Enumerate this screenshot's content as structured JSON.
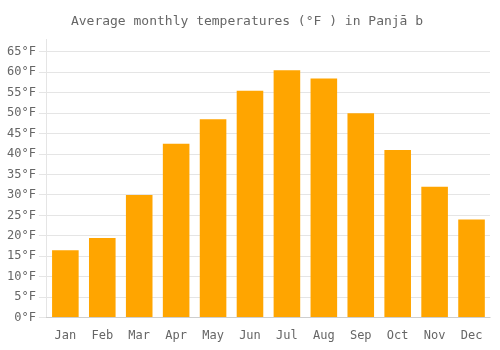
{
  "chart_data": {
    "type": "bar",
    "title": "Average monthly temperatures (°F ) in Panjā b",
    "categories": [
      "Jan",
      "Feb",
      "Mar",
      "Apr",
      "May",
      "Jun",
      "Jul",
      "Aug",
      "Sep",
      "Oct",
      "Nov",
      "Dec"
    ],
    "values": [
      16.5,
      19.5,
      30.0,
      42.5,
      48.5,
      55.5,
      60.5,
      58.5,
      50.0,
      41.0,
      32.0,
      24.0
    ],
    "color": "#FFA500",
    "ylim": [
      0,
      68
    ],
    "yticks": [
      {
        "value": 0,
        "label": "0°F"
      },
      {
        "value": 5,
        "label": "5°F"
      },
      {
        "value": 10,
        "label": "10°F"
      },
      {
        "value": 15,
        "label": "15°F"
      },
      {
        "value": 20,
        "label": "20°F"
      },
      {
        "value": 25,
        "label": "25°F"
      },
      {
        "value": 30,
        "label": "30°F"
      },
      {
        "value": 35,
        "label": "35°F"
      },
      {
        "value": 40,
        "label": "40°F"
      },
      {
        "value": 45,
        "label": "45°F"
      },
      {
        "value": 50,
        "label": "50°F"
      },
      {
        "value": 55,
        "label": "55°F"
      },
      {
        "value": 60,
        "label": "60°F"
      },
      {
        "value": 65,
        "label": "65°F"
      }
    ],
    "grid": true
  }
}
